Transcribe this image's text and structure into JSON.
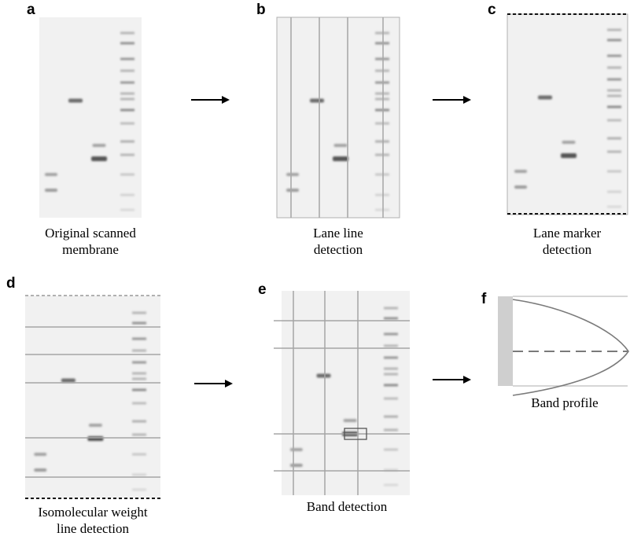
{
  "panels": [
    {
      "letter": "a",
      "caption_lines": [
        "Original scanned",
        "membrane"
      ]
    },
    {
      "letter": "b",
      "caption_lines": [
        "Lane line",
        "detection"
      ]
    },
    {
      "letter": "c",
      "caption_lines": [
        "Lane marker",
        "detection"
      ]
    },
    {
      "letter": "d",
      "caption_lines": [
        "Isomolecular weight",
        "line detection"
      ]
    },
    {
      "letter": "e",
      "caption_lines": [
        "Band detection"
      ]
    },
    {
      "letter": "f",
      "caption_lines": [
        "Band profile"
      ]
    }
  ],
  "colors": {
    "membrane_bg": "#f1f1f1",
    "band_dark": "#555555",
    "band_light": "#9a9a9a",
    "lane_line": "#a6a6a6",
    "marker_line": "#111111",
    "profile_curve": "#7a7a7a",
    "profile_strip": "#cfcfcf",
    "arrow": "#000000"
  }
}
